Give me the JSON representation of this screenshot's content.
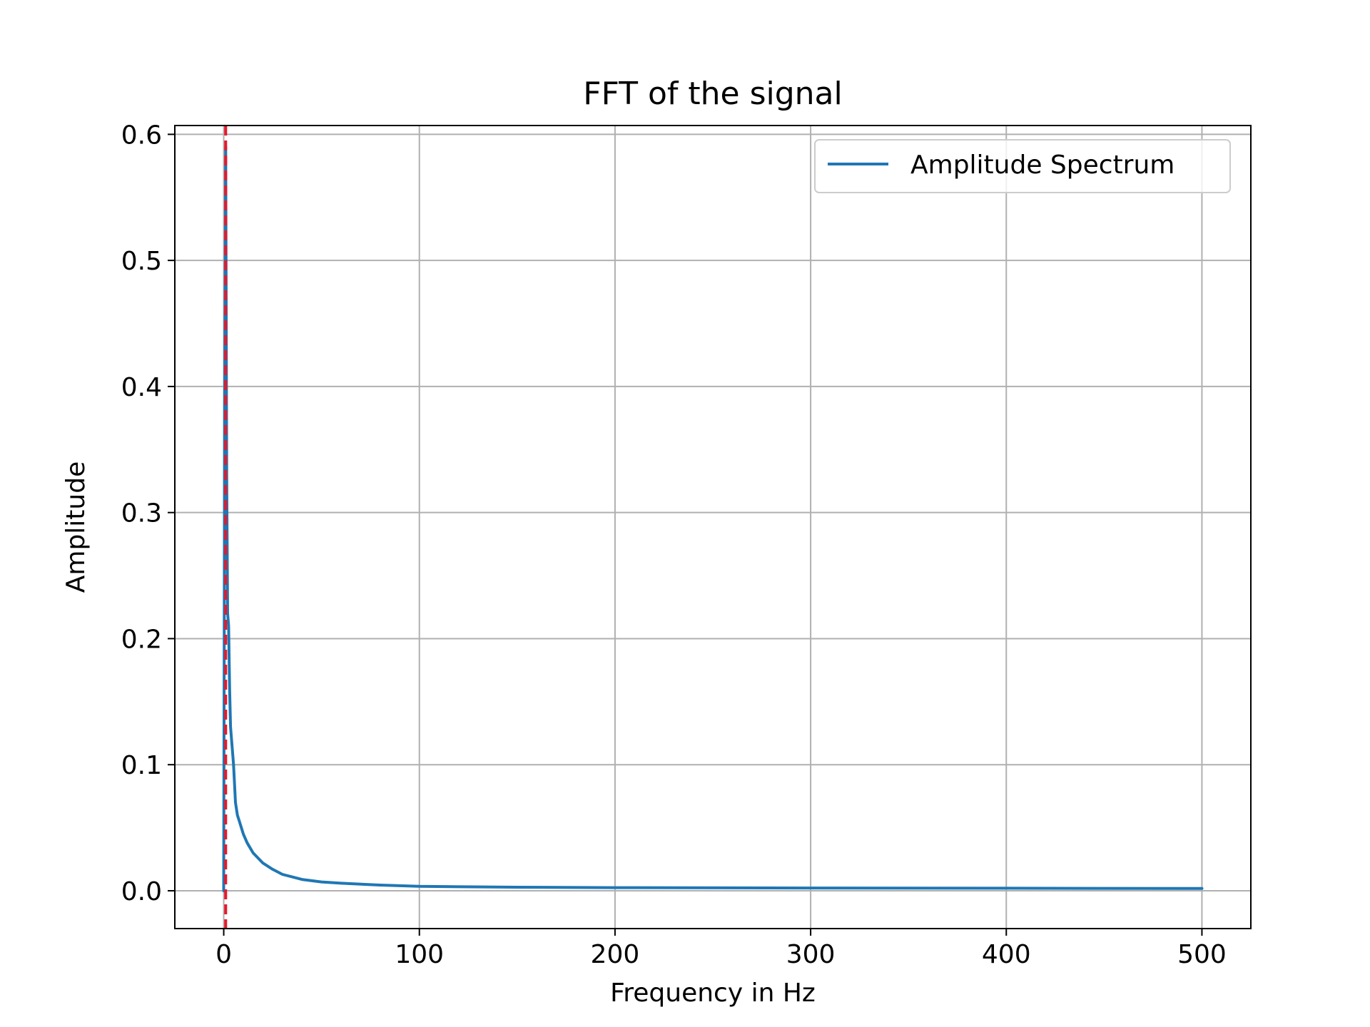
{
  "chart_data": {
    "type": "line",
    "title": "FFT of the signal",
    "xlabel": "Frequency in Hz",
    "ylabel": "Amplitude",
    "xlim": [
      -25,
      525
    ],
    "ylim": [
      -0.03,
      0.607
    ],
    "x_ticks": [
      0,
      100,
      200,
      300,
      400,
      500
    ],
    "x_tick_labels": [
      "0",
      "100",
      "200",
      "300",
      "400",
      "500"
    ],
    "y_ticks": [
      0.0,
      0.1,
      0.2,
      0.3,
      0.4,
      0.5,
      0.6
    ],
    "y_tick_labels": [
      "0.0",
      "0.1",
      "0.2",
      "0.3",
      "0.4",
      "0.5",
      "0.6"
    ],
    "grid": true,
    "legend_position": "top-right",
    "series": [
      {
        "name": "Amplitude Spectrum",
        "color": "#1f77b4",
        "style": "solid",
        "x": [
          0,
          0.5,
          1,
          1.5,
          2,
          2.5,
          3,
          3.5,
          4,
          5,
          6,
          7,
          8,
          10,
          12,
          15,
          20,
          25,
          30,
          40,
          50,
          60,
          80,
          100,
          150,
          200,
          300,
          400,
          500
        ],
        "y": [
          0.0,
          0.385,
          0.59,
          0.33,
          0.22,
          0.21,
          0.16,
          0.13,
          0.12,
          0.1,
          0.07,
          0.06,
          0.055,
          0.045,
          0.038,
          0.03,
          0.022,
          0.017,
          0.013,
          0.009,
          0.007,
          0.006,
          0.0045,
          0.0035,
          0.0028,
          0.0025,
          0.0022,
          0.002,
          0.0018
        ]
      }
    ],
    "reference_line": {
      "x": 1,
      "color": "#e6192a",
      "style": "dashed"
    }
  }
}
